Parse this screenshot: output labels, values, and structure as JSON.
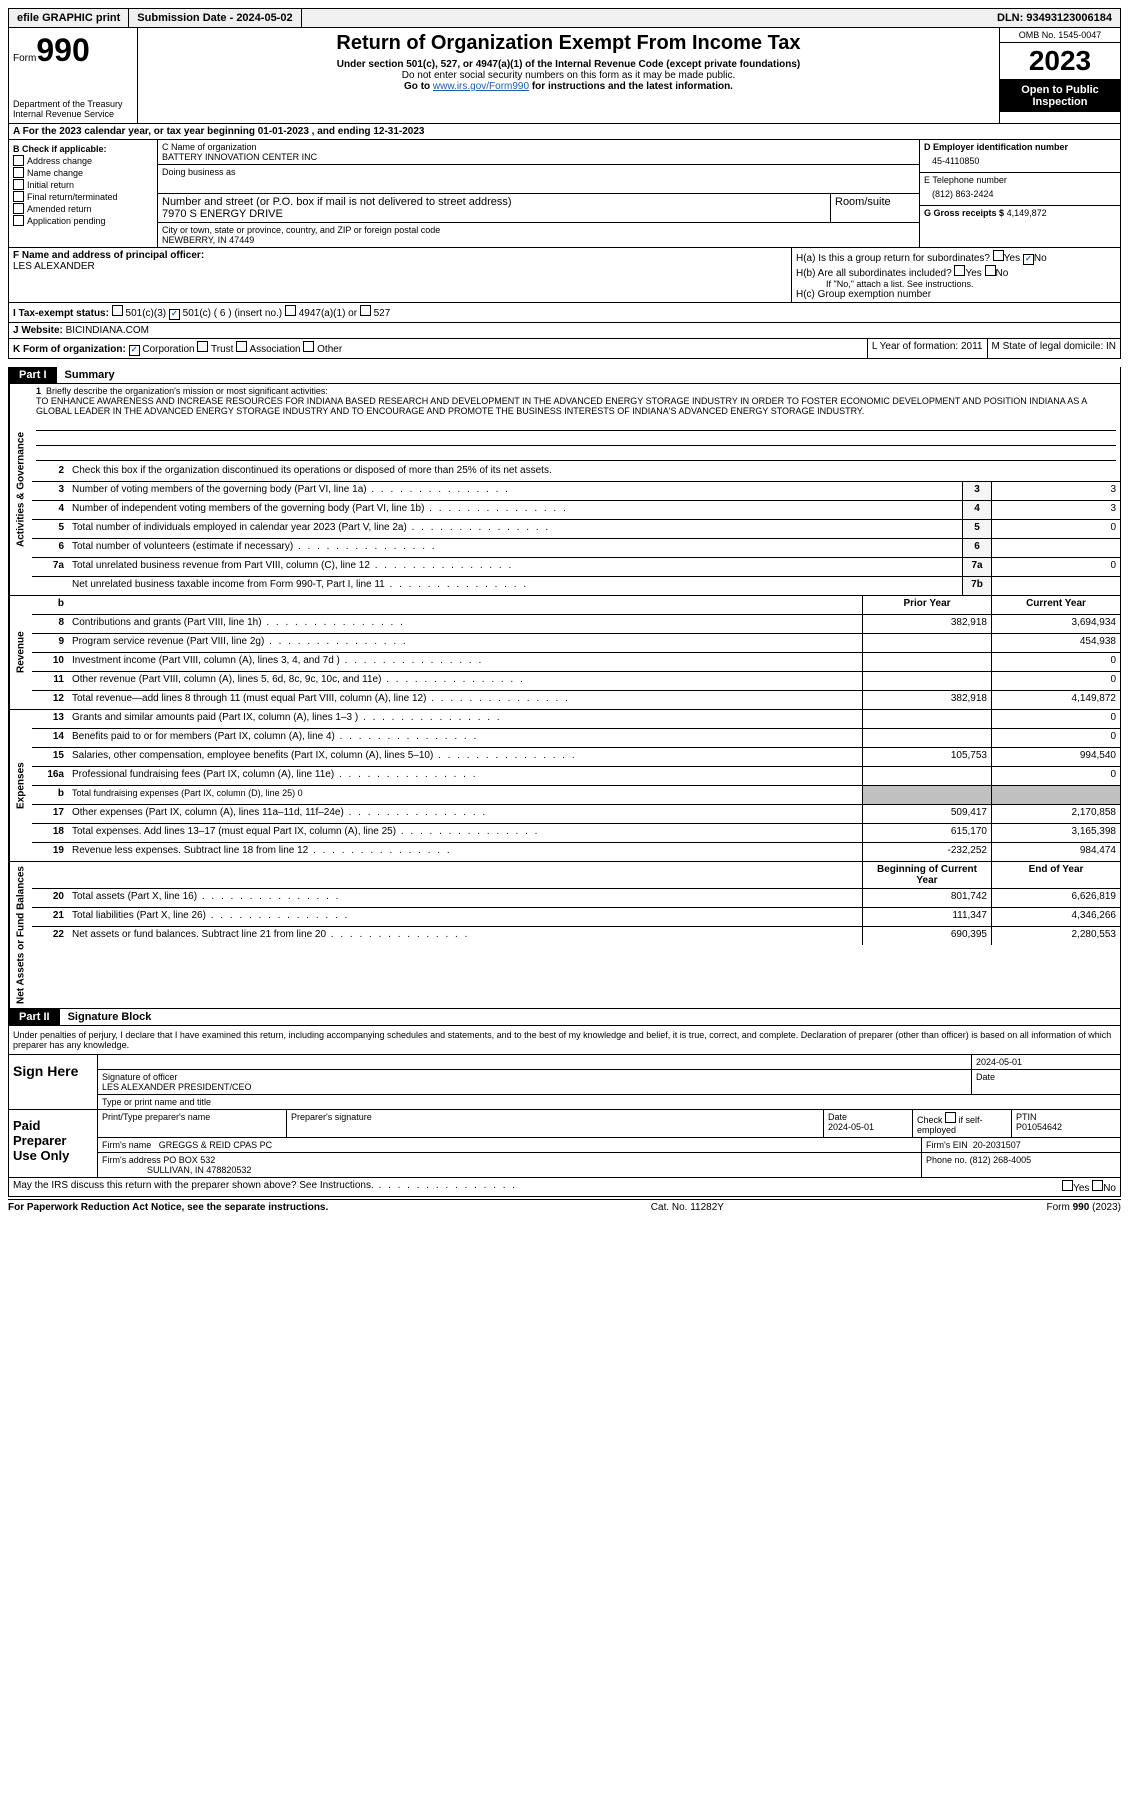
{
  "topbar": {
    "efile": "efile GRAPHIC print",
    "submission": "Submission Date - 2024-05-02",
    "dln": "DLN: 93493123006184"
  },
  "header": {
    "form_label": "Form",
    "form_num": "990",
    "dept": "Department of the Treasury\nInternal Revenue Service",
    "title": "Return of Organization Exempt From Income Tax",
    "subtitle": "Under section 501(c), 527, or 4947(a)(1) of the Internal Revenue Code (except private foundations)",
    "note1": "Do not enter social security numbers on this form as it may be made public.",
    "note2_pre": "Go to ",
    "note2_link": "www.irs.gov/Form990",
    "note2_post": " for instructions and the latest information.",
    "omb": "OMB No. 1545-0047",
    "year": "2023",
    "open": "Open to Public Inspection"
  },
  "row_a": "A For the 2023 calendar year, or tax year beginning 01-01-2023   , and ending 12-31-2023",
  "b": {
    "header": "B Check if applicable:",
    "items": [
      "Address change",
      "Name change",
      "Initial return",
      "Final return/terminated",
      "Amended return",
      "Application pending"
    ]
  },
  "c": {
    "name_label": "C Name of organization",
    "name": "BATTERY INNOVATION CENTER INC",
    "dba_label": "Doing business as",
    "addr_label": "Number and street (or P.O. box if mail is not delivered to street address)",
    "addr": "7970 S ENERGY DRIVE",
    "room_label": "Room/suite",
    "city_label": "City or town, state or province, country, and ZIP or foreign postal code",
    "city": "NEWBERRY, IN  47449"
  },
  "d": {
    "ein_label": "D Employer identification number",
    "ein": "45-4110850",
    "phone_label": "E Telephone number",
    "phone": "(812) 863-2424",
    "gross_label": "G Gross receipts $",
    "gross": "4,149,872"
  },
  "f": {
    "label": "F  Name and address of principal officer:",
    "name": "LES ALEXANDER"
  },
  "h": {
    "a": "H(a)  Is this a group return for subordinates?",
    "b": "H(b)  Are all subordinates included?",
    "b_note": "If \"No,\" attach a list. See instructions.",
    "c": "H(c)  Group exemption number",
    "yes": "Yes",
    "no": "No"
  },
  "i": {
    "label": "I  Tax-exempt status:",
    "opt1": "501(c)(3)",
    "opt2": "501(c) ( 6 ) (insert no.)",
    "opt3": "4947(a)(1) or",
    "opt4": "527"
  },
  "j": {
    "label": "J  Website:",
    "value": "BICINDIANA.COM"
  },
  "k": {
    "label": "K Form of organization:",
    "opts": [
      "Corporation",
      "Trust",
      "Association",
      "Other"
    ]
  },
  "l": {
    "text": "L Year of formation: 2011"
  },
  "m": {
    "text": "M State of legal domicile: IN"
  },
  "part1": {
    "label": "Part I",
    "title": "Summary"
  },
  "mission": {
    "q": "Briefly describe the organization's mission or most significant activities:",
    "text": "TO ENHANCE AWARENESS AND INCREASE RESOURCES FOR INDIANA BASED RESEARCH AND DEVELOPMENT IN THE ADVANCED ENERGY STORAGE INDUSTRY IN ORDER TO FOSTER ECONOMIC DEVELOPMENT AND POSITION INDIANA AS A GLOBAL LEADER IN THE ADVANCED ENERGY STORAGE INDUSTRY AND TO ENCOURAGE AND PROMOTE THE BUSINESS INTERESTS OF INDIANA'S ADVANCED ENERGY STORAGE INDUSTRY."
  },
  "tabs": {
    "ag": "Activities & Governance",
    "rev": "Revenue",
    "exp": "Expenses",
    "net": "Net Assets or Fund Balances"
  },
  "lines_ag": [
    {
      "n": "2",
      "d": "Check this box   if the organization discontinued its operations or disposed of more than 25% of its net assets."
    },
    {
      "n": "3",
      "d": "Number of voting members of the governing body (Part VI, line 1a)",
      "box": "3",
      "v": "3"
    },
    {
      "n": "4",
      "d": "Number of independent voting members of the governing body (Part VI, line 1b)",
      "box": "4",
      "v": "3"
    },
    {
      "n": "5",
      "d": "Total number of individuals employed in calendar year 2023 (Part V, line 2a)",
      "box": "5",
      "v": "0"
    },
    {
      "n": "6",
      "d": "Total number of volunteers (estimate if necessary)",
      "box": "6",
      "v": ""
    },
    {
      "n": "7a",
      "d": "Total unrelated business revenue from Part VIII, column (C), line 12",
      "box": "7a",
      "v": "0"
    },
    {
      "n": "",
      "d": "Net unrelated business taxable income from Form 990-T, Part I, line 11",
      "box": "7b",
      "v": ""
    }
  ],
  "col_headers": {
    "prior": "Prior Year",
    "current": "Current Year",
    "begin": "Beginning of Current Year",
    "end": "End of Year"
  },
  "lines_rev": [
    {
      "n": "8",
      "d": "Contributions and grants (Part VIII, line 1h)",
      "p": "382,918",
      "c": "3,694,934"
    },
    {
      "n": "9",
      "d": "Program service revenue (Part VIII, line 2g)",
      "p": "",
      "c": "454,938"
    },
    {
      "n": "10",
      "d": "Investment income (Part VIII, column (A), lines 3, 4, and 7d )",
      "p": "",
      "c": "0"
    },
    {
      "n": "11",
      "d": "Other revenue (Part VIII, column (A), lines 5, 6d, 8c, 9c, 10c, and 11e)",
      "p": "",
      "c": "0"
    },
    {
      "n": "12",
      "d": "Total revenue—add lines 8 through 11 (must equal Part VIII, column (A), line 12)",
      "p": "382,918",
      "c": "4,149,872"
    }
  ],
  "lines_exp": [
    {
      "n": "13",
      "d": "Grants and similar amounts paid (Part IX, column (A), lines 1–3 )",
      "p": "",
      "c": "0"
    },
    {
      "n": "14",
      "d": "Benefits paid to or for members (Part IX, column (A), line 4)",
      "p": "",
      "c": "0"
    },
    {
      "n": "15",
      "d": "Salaries, other compensation, employee benefits (Part IX, column (A), lines 5–10)",
      "p": "105,753",
      "c": "994,540"
    },
    {
      "n": "16a",
      "d": "Professional fundraising fees (Part IX, column (A), line 11e)",
      "p": "",
      "c": "0"
    },
    {
      "n": "b",
      "d": "Total fundraising expenses (Part IX, column (D), line 25) 0",
      "shaded": true
    },
    {
      "n": "17",
      "d": "Other expenses (Part IX, column (A), lines 11a–11d, 11f–24e)",
      "p": "509,417",
      "c": "2,170,858"
    },
    {
      "n": "18",
      "d": "Total expenses. Add lines 13–17 (must equal Part IX, column (A), line 25)",
      "p": "615,170",
      "c": "3,165,398"
    },
    {
      "n": "19",
      "d": "Revenue less expenses. Subtract line 18 from line 12",
      "p": "-232,252",
      "c": "984,474"
    }
  ],
  "lines_net": [
    {
      "n": "20",
      "d": "Total assets (Part X, line 16)",
      "p": "801,742",
      "c": "6,626,819"
    },
    {
      "n": "21",
      "d": "Total liabilities (Part X, line 26)",
      "p": "111,347",
      "c": "4,346,266"
    },
    {
      "n": "22",
      "d": "Net assets or fund balances. Subtract line 21 from line 20",
      "p": "690,395",
      "c": "2,280,553"
    }
  ],
  "part2": {
    "label": "Part II",
    "title": "Signature Block"
  },
  "perjury": "Under penalties of perjury, I declare that I have examined this return, including accompanying schedules and statements, and to the best of my knowledge and belief, it is true, correct, and complete. Declaration of preparer (other than officer) is based on all information of which preparer has any knowledge.",
  "sign": {
    "here": "Sign Here",
    "sig_label": "Signature of officer",
    "date1": "2024-05-01",
    "date_label": "Date",
    "officer": "LES ALEXANDER  PRESIDENT/CEO",
    "type_label": "Type or print name and title"
  },
  "paid": {
    "label": "Paid Preparer Use Only",
    "h1": "Print/Type preparer's name",
    "h2": "Preparer's signature",
    "h3": "Date",
    "date": "2024-05-01",
    "h4": "Check",
    "h4b": "if self-employed",
    "h5": "PTIN",
    "ptin": "P01054642",
    "firm_label": "Firm's name",
    "firm": "GREGGS & REID CPAS PC",
    "ein_label": "Firm's EIN",
    "ein": "20-2031507",
    "addr_label": "Firm's address",
    "addr1": "PO BOX 532",
    "addr2": "SULLIVAN, IN  478820532",
    "phone_label": "Phone no.",
    "phone": "(812) 268-4005"
  },
  "discuss": "May the IRS discuss this return with the preparer shown above? See Instructions.",
  "footer": {
    "left": "For Paperwork Reduction Act Notice, see the separate instructions.",
    "mid": "Cat. No. 11282Y",
    "right": "Form 990 (2023)"
  }
}
